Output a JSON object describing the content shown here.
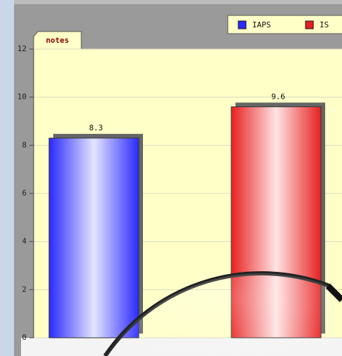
{
  "chart_data": {
    "type": "bar",
    "annotation": "notes",
    "series": [
      {
        "name": "IAPS",
        "color": "#2a2aff",
        "light": "#e4e4ff",
        "values": [
          8.3
        ]
      },
      {
        "name": "IS",
        "color": "#e82020",
        "light": "#ffe4e4",
        "values": [
          9.6
        ]
      }
    ],
    "ylim": [
      0,
      12
    ],
    "yticks": [
      0,
      2,
      4,
      6,
      8,
      10,
      12
    ],
    "grid": true
  }
}
